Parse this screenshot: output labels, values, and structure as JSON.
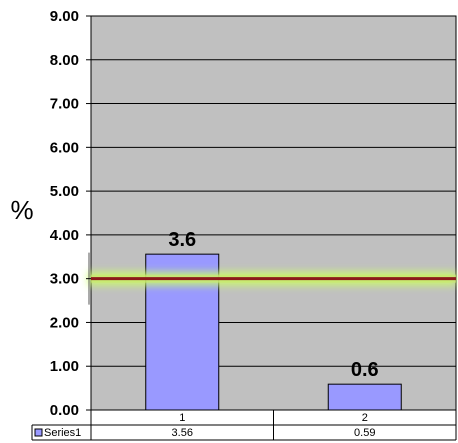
{
  "chart_data": {
    "type": "bar",
    "title": "",
    "xlabel": "",
    "ylabel": "%",
    "ylim": [
      0,
      9
    ],
    "yticks": [
      "0.00",
      "1.00",
      "2.00",
      "3.00",
      "4.00",
      "5.00",
      "6.00",
      "7.00",
      "8.00",
      "9.00"
    ],
    "grid": true,
    "categories": [
      "1",
      "2"
    ],
    "series": [
      {
        "name": "Series1",
        "values": [
          3.56,
          0.59
        ],
        "value_labels": [
          "3.56",
          "0.59"
        ],
        "data_labels": [
          "3.6",
          "0.6"
        ],
        "color": "#9999ff"
      }
    ],
    "reference_line": {
      "value": 3.0,
      "color": "#8b1a1a",
      "glow": "#ccff66"
    },
    "plot_background": "#c0c0c0",
    "data_table": true
  }
}
